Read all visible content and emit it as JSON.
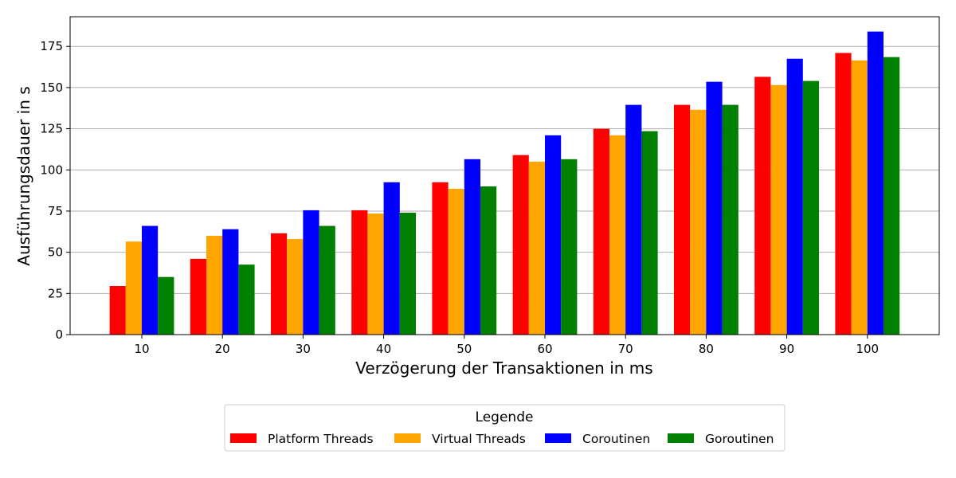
{
  "chart_data": {
    "type": "bar",
    "xlabel": "Verzögerung der Transaktionen in ms",
    "ylabel": "Ausführungsdauer in s",
    "categories": [
      "10",
      "20",
      "30",
      "40",
      "50",
      "60",
      "70",
      "80",
      "90",
      "100"
    ],
    "ylim": [
      0,
      193
    ],
    "yticks": [
      0,
      25,
      50,
      75,
      100,
      125,
      150,
      175
    ],
    "grid": "horizontal",
    "legend": {
      "title": "Legende",
      "placement": "below the plot, centered"
    },
    "series": [
      {
        "name": "Platform Threads",
        "color": "#ff0000",
        "values": [
          29.5,
          46,
          61.5,
          75.5,
          92.5,
          109,
          125,
          139.5,
          156.5,
          171
        ]
      },
      {
        "name": "Virtual Threads",
        "color": "#ffa500",
        "values": [
          56.5,
          60,
          58,
          73.5,
          88.5,
          105,
          121,
          136.5,
          151.5,
          166.5
        ]
      },
      {
        "name": "Coroutinen",
        "color": "#0000ff",
        "values": [
          66,
          64,
          75.5,
          92.5,
          106.5,
          121,
          139.5,
          153.5,
          167.5,
          184
        ]
      },
      {
        "name": "Goroutinen",
        "color": "#008000",
        "values": [
          35,
          42.5,
          66,
          74,
          90,
          106.5,
          123.5,
          139.5,
          154,
          168.5
        ]
      }
    ]
  }
}
